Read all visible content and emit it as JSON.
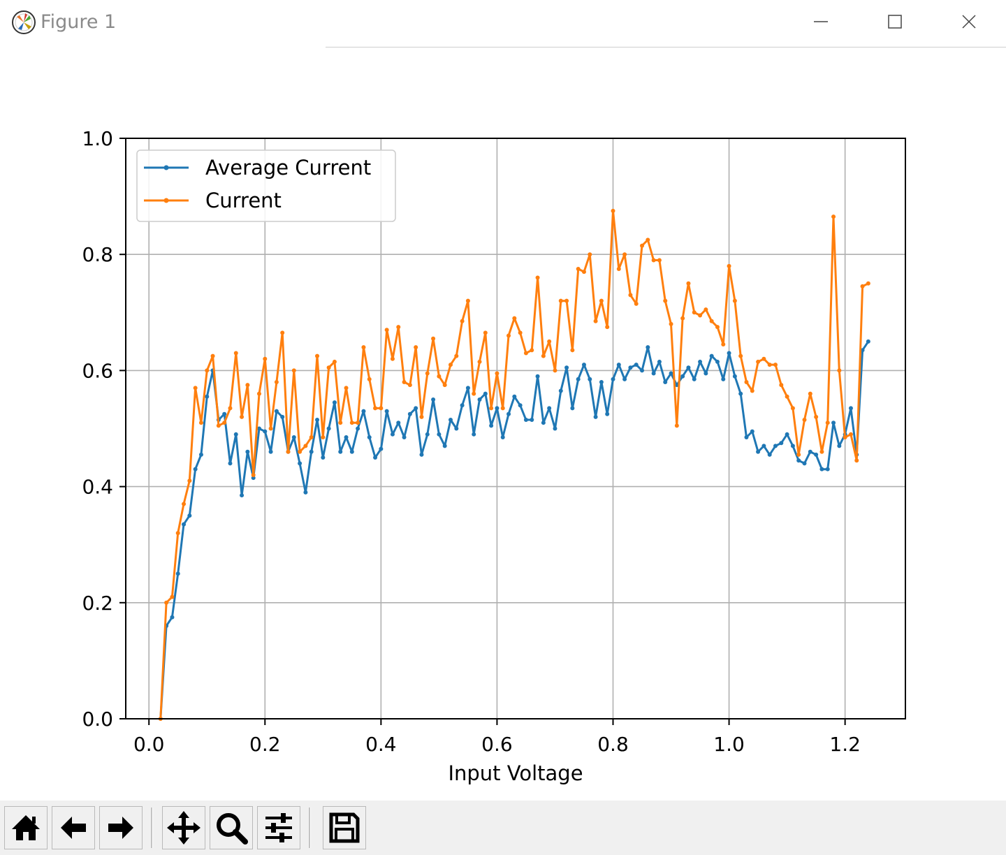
{
  "window": {
    "title": "Figure 1",
    "icons": [
      "matplotlib-icon",
      "minimize-icon",
      "maximize-icon",
      "close-icon"
    ]
  },
  "toolbar": {
    "buttons": [
      {
        "name": "home",
        "icon": "home-icon"
      },
      {
        "name": "back",
        "icon": "arrow-left-icon"
      },
      {
        "name": "forward",
        "icon": "arrow-right-icon"
      },
      {
        "name": "pan",
        "icon": "move-icon"
      },
      {
        "name": "zoom",
        "icon": "magnifier-icon"
      },
      {
        "name": "configure-subplots",
        "icon": "sliders-icon"
      },
      {
        "name": "save",
        "icon": "floppy-disk-icon"
      }
    ]
  },
  "chart_data": {
    "type": "line",
    "title": "",
    "xlabel": "Input Voltage",
    "ylabel": "",
    "xlim": [
      -0.04,
      1.304
    ],
    "ylim": [
      0.0,
      1.0
    ],
    "xticks": [
      0.0,
      0.2,
      0.4,
      0.6,
      0.8,
      1.0,
      1.2
    ],
    "xtick_labels": [
      "0.0",
      "0.2",
      "0.4",
      "0.6",
      "0.8",
      "1.0",
      "1.2"
    ],
    "yticks": [
      0.0,
      0.2,
      0.4,
      0.6,
      0.8,
      1.0
    ],
    "ytick_labels": [
      "0.0",
      "0.2",
      "0.4",
      "0.6",
      "0.8",
      "1.0"
    ],
    "grid": true,
    "legend_position": "upper-left",
    "series": [
      {
        "name": "Average Current",
        "color": "#1f77b4",
        "marker": "point",
        "x": [
          0.02,
          0.03,
          0.04,
          0.05,
          0.06,
          0.07,
          0.08,
          0.09,
          0.1,
          0.11,
          0.12,
          0.13,
          0.14,
          0.15,
          0.16,
          0.17,
          0.18,
          0.19,
          0.2,
          0.21,
          0.22,
          0.23,
          0.24,
          0.25,
          0.26,
          0.27,
          0.28,
          0.29,
          0.3,
          0.31,
          0.32,
          0.33,
          0.34,
          0.35,
          0.36,
          0.37,
          0.38,
          0.39,
          0.4,
          0.41,
          0.42,
          0.43,
          0.44,
          0.45,
          0.46,
          0.47,
          0.48,
          0.49,
          0.5,
          0.51,
          0.52,
          0.53,
          0.54,
          0.55,
          0.56,
          0.57,
          0.58,
          0.59,
          0.6,
          0.61,
          0.62,
          0.63,
          0.64,
          0.65,
          0.66,
          0.67,
          0.68,
          0.69,
          0.7,
          0.71,
          0.72,
          0.73,
          0.74,
          0.75,
          0.76,
          0.77,
          0.78,
          0.79,
          0.8,
          0.81,
          0.82,
          0.83,
          0.84,
          0.85,
          0.86,
          0.87,
          0.88,
          0.89,
          0.9,
          0.91,
          0.92,
          0.93,
          0.94,
          0.95,
          0.96,
          0.97,
          0.98,
          0.99,
          1.0,
          1.01,
          1.02,
          1.03,
          1.04,
          1.05,
          1.06,
          1.07,
          1.08,
          1.09,
          1.1,
          1.11,
          1.12,
          1.13,
          1.14,
          1.15,
          1.16,
          1.17,
          1.18,
          1.19,
          1.2,
          1.21,
          1.22,
          1.23,
          1.24
        ],
        "y": [
          0.0,
          0.16,
          0.175,
          0.25,
          0.335,
          0.35,
          0.43,
          0.455,
          0.555,
          0.6,
          0.515,
          0.525,
          0.44,
          0.49,
          0.385,
          0.46,
          0.415,
          0.5,
          0.495,
          0.46,
          0.53,
          0.52,
          0.46,
          0.485,
          0.44,
          0.39,
          0.46,
          0.515,
          0.45,
          0.5,
          0.545,
          0.46,
          0.485,
          0.46,
          0.5,
          0.53,
          0.485,
          0.45,
          0.465,
          0.53,
          0.49,
          0.51,
          0.485,
          0.525,
          0.535,
          0.455,
          0.49,
          0.55,
          0.49,
          0.47,
          0.515,
          0.5,
          0.54,
          0.57,
          0.49,
          0.55,
          0.56,
          0.505,
          0.535,
          0.485,
          0.525,
          0.555,
          0.54,
          0.515,
          0.515,
          0.59,
          0.51,
          0.535,
          0.5,
          0.565,
          0.605,
          0.535,
          0.585,
          0.61,
          0.585,
          0.52,
          0.58,
          0.525,
          0.585,
          0.61,
          0.585,
          0.605,
          0.61,
          0.6,
          0.64,
          0.595,
          0.615,
          0.58,
          0.595,
          0.575,
          0.59,
          0.605,
          0.585,
          0.615,
          0.595,
          0.625,
          0.615,
          0.585,
          0.63,
          0.59,
          0.56,
          0.485,
          0.495,
          0.46,
          0.47,
          0.455,
          0.47,
          0.475,
          0.49,
          0.47,
          0.445,
          0.44,
          0.46,
          0.455,
          0.43,
          0.43,
          0.51,
          0.47,
          0.49,
          0.535,
          0.455,
          0.635,
          0.65
        ]
      },
      {
        "name": "Current",
        "color": "#ff7f0e",
        "marker": "point",
        "x": [
          0.02,
          0.03,
          0.04,
          0.05,
          0.06,
          0.07,
          0.08,
          0.09,
          0.1,
          0.11,
          0.12,
          0.13,
          0.14,
          0.15,
          0.16,
          0.17,
          0.18,
          0.19,
          0.2,
          0.21,
          0.22,
          0.23,
          0.24,
          0.25,
          0.26,
          0.27,
          0.28,
          0.29,
          0.3,
          0.31,
          0.32,
          0.33,
          0.34,
          0.35,
          0.36,
          0.37,
          0.38,
          0.39,
          0.4,
          0.41,
          0.42,
          0.43,
          0.44,
          0.45,
          0.46,
          0.47,
          0.48,
          0.49,
          0.5,
          0.51,
          0.52,
          0.53,
          0.54,
          0.55,
          0.56,
          0.57,
          0.58,
          0.59,
          0.6,
          0.61,
          0.62,
          0.63,
          0.64,
          0.65,
          0.66,
          0.67,
          0.68,
          0.69,
          0.7,
          0.71,
          0.72,
          0.73,
          0.74,
          0.75,
          0.76,
          0.77,
          0.78,
          0.79,
          0.8,
          0.81,
          0.82,
          0.83,
          0.84,
          0.85,
          0.86,
          0.87,
          0.88,
          0.89,
          0.9,
          0.91,
          0.92,
          0.93,
          0.94,
          0.95,
          0.96,
          0.97,
          0.98,
          0.99,
          1.0,
          1.01,
          1.02,
          1.03,
          1.04,
          1.05,
          1.06,
          1.07,
          1.08,
          1.09,
          1.1,
          1.11,
          1.12,
          1.13,
          1.14,
          1.15,
          1.16,
          1.17,
          1.18,
          1.19,
          1.2,
          1.21,
          1.22,
          1.23,
          1.24
        ],
        "y": [
          0.0,
          0.2,
          0.21,
          0.32,
          0.37,
          0.41,
          0.57,
          0.51,
          0.6,
          0.625,
          0.505,
          0.51,
          0.535,
          0.63,
          0.52,
          0.575,
          0.42,
          0.56,
          0.62,
          0.5,
          0.58,
          0.665,
          0.46,
          0.6,
          0.46,
          0.47,
          0.485,
          0.625,
          0.485,
          0.605,
          0.615,
          0.51,
          0.57,
          0.51,
          0.51,
          0.64,
          0.585,
          0.535,
          0.535,
          0.67,
          0.62,
          0.675,
          0.58,
          0.575,
          0.64,
          0.52,
          0.595,
          0.655,
          0.59,
          0.575,
          0.61,
          0.625,
          0.685,
          0.72,
          0.56,
          0.615,
          0.665,
          0.535,
          0.595,
          0.535,
          0.66,
          0.69,
          0.665,
          0.63,
          0.635,
          0.76,
          0.625,
          0.65,
          0.6,
          0.72,
          0.72,
          0.635,
          0.775,
          0.77,
          0.8,
          0.685,
          0.72,
          0.675,
          0.875,
          0.775,
          0.8,
          0.73,
          0.715,
          0.815,
          0.825,
          0.79,
          0.79,
          0.72,
          0.68,
          0.505,
          0.69,
          0.75,
          0.7,
          0.695,
          0.705,
          0.685,
          0.675,
          0.645,
          0.78,
          0.72,
          0.625,
          0.58,
          0.565,
          0.615,
          0.62,
          0.61,
          0.61,
          0.575,
          0.555,
          0.535,
          0.455,
          0.515,
          0.56,
          0.52,
          0.46,
          0.51,
          0.865,
          0.6,
          0.485,
          0.49,
          0.445,
          0.745,
          0.75
        ]
      }
    ]
  }
}
